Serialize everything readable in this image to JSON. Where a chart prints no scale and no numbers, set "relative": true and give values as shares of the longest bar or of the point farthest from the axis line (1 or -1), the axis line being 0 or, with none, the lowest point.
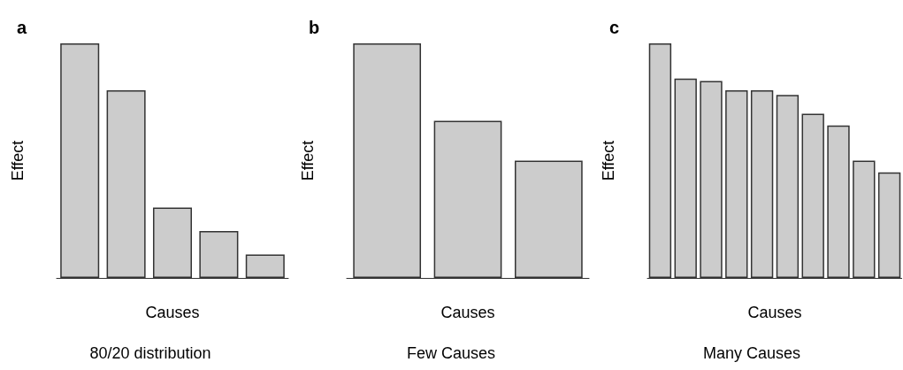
{
  "chart_data": [
    {
      "type": "bar",
      "relative": true,
      "title": "a",
      "subtitle": "80/20 distribution",
      "xlabel": "Causes",
      "ylabel": "Effect",
      "categories": [
        null,
        null,
        null,
        null,
        null
      ],
      "values": [
        1,
        0.8,
        0.3,
        0.2,
        0.1
      ],
      "color": "#cccccc"
    },
    {
      "type": "bar",
      "relative": true,
      "title": "b",
      "subtitle": "Few Causes",
      "xlabel": "Causes",
      "ylabel": "Effect",
      "categories": [
        null,
        null,
        null
      ],
      "values": [
        1,
        0.67,
        0.5
      ],
      "color": "#cccccc"
    },
    {
      "type": "bar",
      "relative": true,
      "title": "c",
      "subtitle": "Many Causes",
      "xlabel": "Causes",
      "ylabel": "Effect",
      "categories": [
        null,
        null,
        null,
        null,
        null,
        null,
        null,
        null,
        null,
        null
      ],
      "values": [
        1,
        0.85,
        0.84,
        0.8,
        0.8,
        0.78,
        0.7,
        0.65,
        0.5,
        0.45
      ],
      "color": "#cccccc"
    }
  ]
}
